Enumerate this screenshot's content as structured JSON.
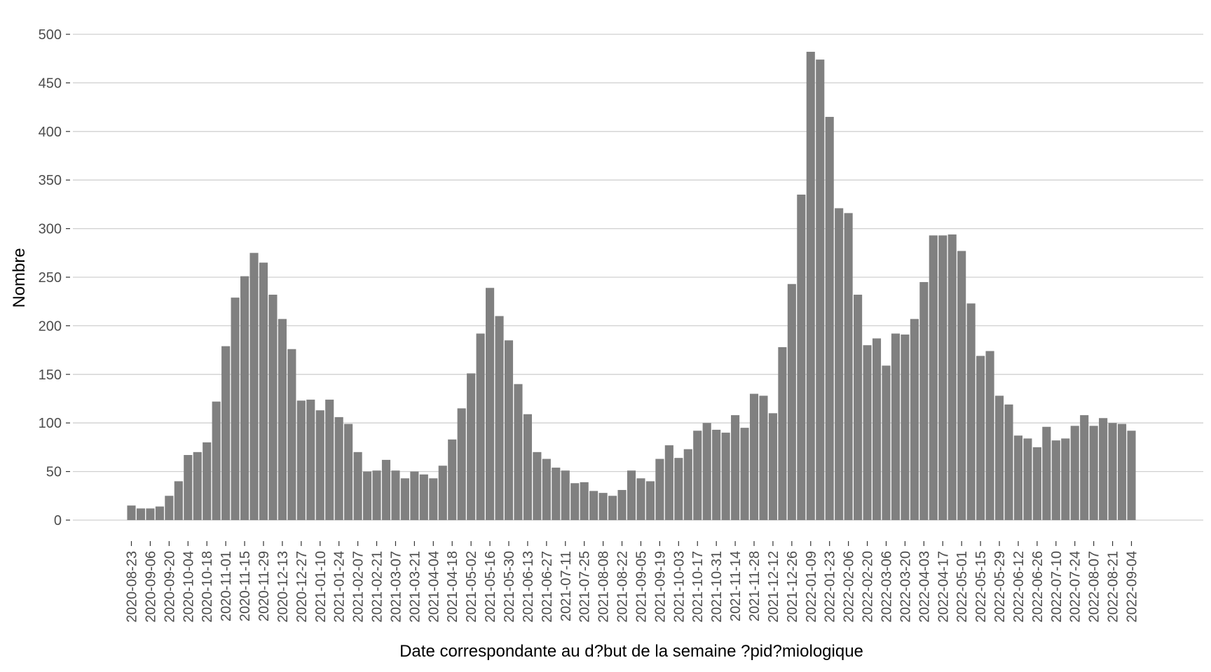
{
  "chart_data": {
    "type": "bar",
    "title": "",
    "xlabel": "Date correspondante au d?but de la semaine ?pid?miologique",
    "ylabel": "Nombre",
    "ylim": [
      0,
      500
    ],
    "yticks": [
      0,
      50,
      100,
      150,
      200,
      250,
      300,
      350,
      400,
      450,
      500
    ],
    "grid": "horizontal major",
    "bar_color": "#808080",
    "categories": [
      "2020-08-23",
      "2020-08-30",
      "2020-09-06",
      "2020-09-13",
      "2020-09-20",
      "2020-09-27",
      "2020-10-04",
      "2020-10-11",
      "2020-10-18",
      "2020-10-25",
      "2020-11-01",
      "2020-11-08",
      "2020-11-15",
      "2020-11-22",
      "2020-11-29",
      "2020-12-06",
      "2020-12-13",
      "2020-12-20",
      "2020-12-27",
      "2021-01-03",
      "2021-01-10",
      "2021-01-17",
      "2021-01-24",
      "2021-01-31",
      "2021-02-07",
      "2021-02-14",
      "2021-02-21",
      "2021-02-28",
      "2021-03-07",
      "2021-03-14",
      "2021-03-21",
      "2021-03-28",
      "2021-04-04",
      "2021-04-11",
      "2021-04-18",
      "2021-04-25",
      "2021-05-02",
      "2021-05-09",
      "2021-05-16",
      "2021-05-23",
      "2021-05-30",
      "2021-06-06",
      "2021-06-13",
      "2021-06-20",
      "2021-06-27",
      "2021-07-04",
      "2021-07-11",
      "2021-07-18",
      "2021-07-25",
      "2021-08-01",
      "2021-08-08",
      "2021-08-15",
      "2021-08-22",
      "2021-08-29",
      "2021-09-05",
      "2021-09-12",
      "2021-09-19",
      "2021-09-26",
      "2021-10-03",
      "2021-10-10",
      "2021-10-17",
      "2021-10-24",
      "2021-10-31",
      "2021-11-07",
      "2021-11-14",
      "2021-11-21",
      "2021-11-28",
      "2021-12-05",
      "2021-12-12",
      "2021-12-19",
      "2021-12-26",
      "2022-01-02",
      "2022-01-09",
      "2022-01-16",
      "2022-01-23",
      "2022-01-30",
      "2022-02-06",
      "2022-02-13",
      "2022-02-20",
      "2022-02-27",
      "2022-03-06",
      "2022-03-13",
      "2022-03-20",
      "2022-03-27",
      "2022-04-03",
      "2022-04-10",
      "2022-04-17",
      "2022-04-24",
      "2022-05-01",
      "2022-05-08",
      "2022-05-15",
      "2022-05-22",
      "2022-05-29",
      "2022-06-05",
      "2022-06-12",
      "2022-06-19",
      "2022-06-26",
      "2022-07-03",
      "2022-07-10",
      "2022-07-17",
      "2022-07-24",
      "2022-07-31",
      "2022-08-07",
      "2022-08-14",
      "2022-08-21",
      "2022-08-28",
      "2022-09-04"
    ],
    "values": [
      15,
      12,
      12,
      14,
      25,
      40,
      67,
      70,
      80,
      122,
      179,
      229,
      251,
      275,
      265,
      232,
      207,
      176,
      123,
      124,
      113,
      124,
      106,
      99,
      70,
      50,
      51,
      62,
      51,
      43,
      50,
      47,
      43,
      56,
      83,
      115,
      151,
      192,
      239,
      210,
      185,
      140,
      109,
      70,
      63,
      54,
      51,
      38,
      39,
      30,
      28,
      25,
      31,
      51,
      43,
      40,
      63,
      77,
      64,
      73,
      92,
      100,
      93,
      90,
      108,
      95,
      130,
      128,
      110,
      178,
      243,
      335,
      482,
      474,
      415,
      321,
      316,
      232,
      180,
      187,
      159,
      192,
      191,
      207,
      245,
      293,
      293,
      294,
      277,
      223,
      169,
      174,
      128,
      119,
      87,
      84,
      75,
      96,
      82,
      84,
      97,
      108,
      97,
      105,
      100,
      99,
      92
    ],
    "xtick_labels": [
      "2020-08-23",
      "2020-09-06",
      "2020-09-20",
      "2020-10-04",
      "2020-10-18",
      "2020-11-01",
      "2020-11-15",
      "2020-11-29",
      "2020-12-13",
      "2020-12-27",
      "2021-01-10",
      "2021-01-24",
      "2021-02-07",
      "2021-02-21",
      "2021-03-07",
      "2021-03-21",
      "2021-04-04",
      "2021-04-18",
      "2021-05-02",
      "2021-05-16",
      "2021-05-30",
      "2021-06-13",
      "2021-06-27",
      "2021-07-11",
      "2021-07-25",
      "2021-08-08",
      "2021-08-22",
      "2021-09-05",
      "2021-09-19",
      "2021-10-03",
      "2021-10-17",
      "2021-10-31",
      "2021-11-14",
      "2021-11-28",
      "2021-12-12",
      "2021-12-26",
      "2022-01-09",
      "2022-01-23",
      "2022-02-06",
      "2022-02-20",
      "2022-03-06",
      "2022-03-20",
      "2022-04-03",
      "2022-04-17",
      "2022-05-01",
      "2022-05-15",
      "2022-05-29",
      "2022-06-12",
      "2022-06-26",
      "2022-07-10",
      "2022-07-24",
      "2022-08-07",
      "2022-08-21",
      "2022-09-04"
    ]
  }
}
